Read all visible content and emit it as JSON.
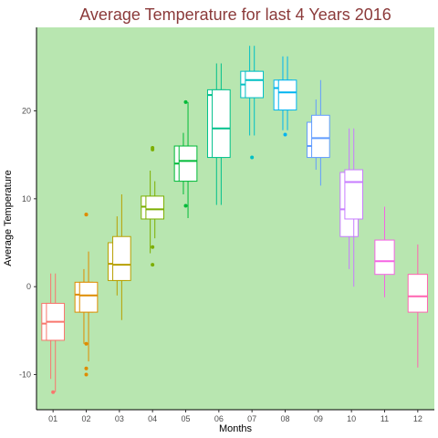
{
  "chart_data": {
    "type": "boxplot",
    "title": "Average Temperature for last 4 Years 2016",
    "xlabel": "Months",
    "ylabel": "Average Temperature",
    "ylim": [
      -14,
      29.5
    ],
    "yticks": [
      -10,
      0,
      10,
      20
    ],
    "categories": [
      "01",
      "02",
      "03",
      "04",
      "05",
      "06",
      "07",
      "08",
      "09",
      "10",
      "11",
      "12"
    ],
    "background": "#b8e6b0",
    "title_color": "#8b3a3a",
    "grid": false,
    "legend": "none",
    "months": [
      {
        "label": "01",
        "color": "#f8766d",
        "boxes": [
          {
            "lower_whisker": -10.5,
            "q1": -6.1,
            "median": -4.2,
            "q3": -1.9,
            "upper_whisker": 1.5
          },
          {
            "lower_whisker": -12.0,
            "q1": -6.1,
            "median": -4.0,
            "q3": -1.9,
            "upper_whisker": 1.5
          }
        ],
        "outliers": [
          -12.0
        ]
      },
      {
        "label": "02",
        "color": "#de8c00",
        "boxes": [
          {
            "lower_whisker": -6.5,
            "q1": -2.9,
            "median": -0.9,
            "q3": 0.5,
            "upper_whisker": 2.0
          },
          {
            "lower_whisker": -8.5,
            "q1": -2.9,
            "median": -1.0,
            "q3": 0.5,
            "upper_whisker": 4.0
          }
        ],
        "outliers": [
          8.2,
          8.2,
          -6.5,
          -9.3,
          -10.0
        ]
      },
      {
        "label": "03",
        "color": "#b79f00",
        "boxes": [
          {
            "lower_whisker": -1.0,
            "q1": 0.7,
            "median": 2.6,
            "q3": 5.0,
            "upper_whisker": 8.0
          },
          {
            "lower_whisker": -3.8,
            "q1": 0.7,
            "median": 2.5,
            "q3": 5.7,
            "upper_whisker": 10.5
          }
        ],
        "outliers": []
      },
      {
        "label": "04",
        "color": "#7cae00",
        "boxes": [
          {
            "lower_whisker": 3.8,
            "q1": 7.7,
            "median": 9.1,
            "q3": 10.3,
            "upper_whisker": 13.2
          },
          {
            "lower_whisker": 5.5,
            "q1": 7.7,
            "median": 8.8,
            "q3": 10.3,
            "upper_whisker": 12.0
          }
        ],
        "outliers": [
          15.8,
          15.6,
          4.5,
          2.5
        ]
      },
      {
        "label": "05",
        "color": "#00ba38",
        "boxes": [
          {
            "lower_whisker": 10.5,
            "q1": 12.0,
            "median": 14.0,
            "q3": 16.0,
            "upper_whisker": 17.5
          },
          {
            "lower_whisker": 7.8,
            "q1": 12.0,
            "median": 14.3,
            "q3": 16.0,
            "upper_whisker": 21.0
          }
        ],
        "outliers": [
          21.0,
          9.2
        ]
      },
      {
        "label": "06",
        "color": "#00c08b",
        "boxes": [
          {
            "lower_whisker": 9.3,
            "q1": 14.7,
            "median": 21.8,
            "q3": 22.4,
            "upper_whisker": 25.4
          },
          {
            "lower_whisker": 9.3,
            "q1": 14.7,
            "median": 18.0,
            "q3": 22.4,
            "upper_whisker": 25.4
          }
        ],
        "outliers": []
      },
      {
        "label": "07",
        "color": "#00bfc4",
        "boxes": [
          {
            "lower_whisker": 17.2,
            "q1": 21.5,
            "median": 23.0,
            "q3": 24.5,
            "upper_whisker": 27.4
          },
          {
            "lower_whisker": 17.2,
            "q1": 21.5,
            "median": 23.5,
            "q3": 24.5,
            "upper_whisker": 27.4
          }
        ],
        "outliers": [
          14.7
        ]
      },
      {
        "label": "08",
        "color": "#00b4f0",
        "boxes": [
          {
            "lower_whisker": 17.8,
            "q1": 20.1,
            "median": 22.6,
            "q3": 23.5,
            "upper_whisker": 26.2
          },
          {
            "lower_whisker": 17.8,
            "q1": 20.1,
            "median": 22.1,
            "q3": 23.5,
            "upper_whisker": 26.2
          }
        ],
        "outliers": [
          17.3
        ]
      },
      {
        "label": "09",
        "color": "#619cff",
        "boxes": [
          {
            "lower_whisker": 13.3,
            "q1": 14.7,
            "median": 16.0,
            "q3": 18.7,
            "upper_whisker": 21.3
          },
          {
            "lower_whisker": 11.5,
            "q1": 14.7,
            "median": 16.9,
            "q3": 19.5,
            "upper_whisker": 23.5
          }
        ],
        "outliers": []
      },
      {
        "label": "10",
        "color": "#c77cff",
        "boxes": [
          {
            "lower_whisker": 2.0,
            "q1": 5.7,
            "median": 8.8,
            "q3": 13.0,
            "upper_whisker": 18.0
          },
          {
            "lower_whisker": 0.0,
            "q1": 7.7,
            "median": 11.9,
            "q3": 13.3,
            "upper_whisker": 18.0
          }
        ],
        "outliers": []
      },
      {
        "label": "11",
        "color": "#f564e3",
        "boxes": [
          {
            "lower_whisker": -1.2,
            "q1": 1.4,
            "median": 2.9,
            "q3": 5.3,
            "upper_whisker": 9.1
          }
        ],
        "outliers": []
      },
      {
        "label": "12",
        "color": "#ff64b0",
        "boxes": [
          {
            "lower_whisker": -9.2,
            "q1": -2.9,
            "median": -1.1,
            "q3": 1.4,
            "upper_whisker": 4.8
          }
        ],
        "outliers": []
      }
    ]
  }
}
